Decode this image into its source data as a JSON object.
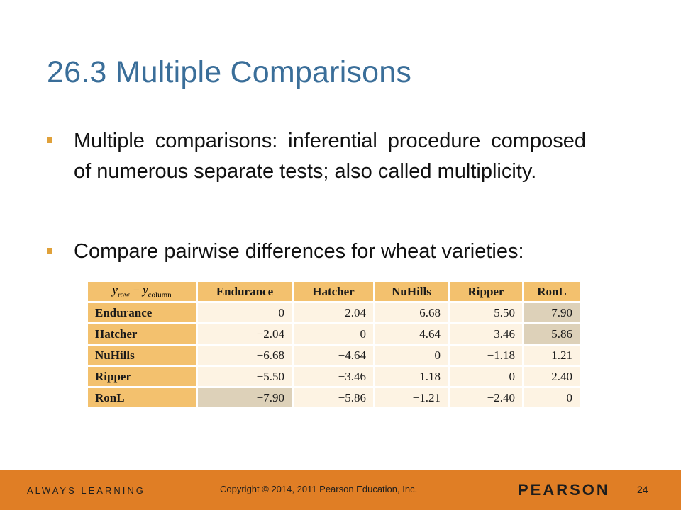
{
  "slide": {
    "title": "26.3 Multiple Comparisons",
    "bullets": [
      "Multiple comparisons:  inferential procedure composed of numerous separate tests; also called multiplicity.",
      "Compare pairwise differences for wheat varieties:"
    ]
  },
  "table": {
    "corner": {
      "main": "y",
      "row_sub": "row",
      "minus": " − ",
      "col_sub": "column"
    },
    "columns": [
      "Endurance",
      "Hatcher",
      "NuHills",
      "Ripper",
      "RonL"
    ],
    "rows": [
      {
        "label": "Endurance",
        "values": [
          "0",
          "2.04",
          "6.68",
          "5.50",
          "7.90"
        ]
      },
      {
        "label": "Hatcher",
        "values": [
          "−2.04",
          "0",
          "4.64",
          "3.46",
          "5.86"
        ]
      },
      {
        "label": "NuHills",
        "values": [
          "−6.68",
          "−4.64",
          "0",
          "−1.18",
          "1.21"
        ]
      },
      {
        "label": "Ripper",
        "values": [
          "−5.50",
          "−3.46",
          "1.18",
          "0",
          "2.40"
        ]
      },
      {
        "label": "RonL",
        "values": [
          "−7.90",
          "−5.86",
          "−1.21",
          "−2.40",
          "0"
        ]
      }
    ]
  },
  "footer": {
    "tagline": "ALWAYS LEARNING",
    "copyright": "Copyright © 2014, 2011 Pearson Education, Inc.",
    "brand": "PEARSON",
    "page_number": "24"
  }
}
